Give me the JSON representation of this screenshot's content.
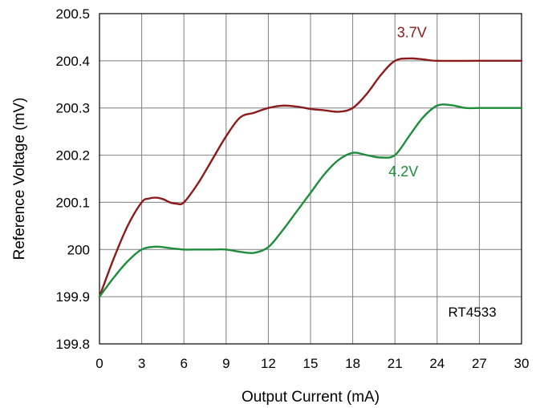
{
  "chart_data": {
    "type": "line",
    "xlabel": "Output Current (mA)",
    "ylabel": "Reference Voltage (mV)",
    "xlim": [
      0,
      30
    ],
    "ylim": [
      199.8,
      200.5
    ],
    "x_ticks": [
      "0",
      "3",
      "6",
      "9",
      "12",
      "15",
      "18",
      "21",
      "24",
      "27",
      "30"
    ],
    "y_ticks": [
      "200.5",
      "200.4",
      "200.3",
      "200.2",
      "200.1",
      "200",
      "199.9",
      "199.8"
    ],
    "grid": true,
    "annotation": "RT4533",
    "series": [
      {
        "name": "3.7V",
        "color": "#8b1a1a",
        "x": [
          0,
          1,
          2,
          3,
          3.5,
          4,
          4.5,
          5,
          5.5,
          6,
          7,
          8,
          9,
          10,
          11,
          12,
          13,
          14,
          15,
          16,
          17,
          18,
          19,
          20,
          21,
          22,
          23,
          24,
          27,
          30
        ],
        "y": [
          199.9,
          199.98,
          200.05,
          200.1,
          200.108,
          200.11,
          200.107,
          200.1,
          200.097,
          200.1,
          200.14,
          200.19,
          200.24,
          200.28,
          200.29,
          200.3,
          200.305,
          200.303,
          200.298,
          200.295,
          200.292,
          200.3,
          200.33,
          200.37,
          200.4,
          200.405,
          200.403,
          200.4,
          200.4,
          200.4
        ]
      },
      {
        "name": "4.2V",
        "color": "#1e8c3a",
        "x": [
          0,
          1,
          2,
          3,
          4,
          5,
          6,
          7,
          8,
          9,
          10,
          11,
          12,
          13,
          14,
          15,
          16,
          17,
          18,
          19,
          20,
          21,
          22,
          23,
          24,
          25,
          26,
          27,
          30
        ],
        "y": [
          199.9,
          199.94,
          199.975,
          200.0,
          200.006,
          200.003,
          200.0,
          200.0,
          200.0,
          200.0,
          199.995,
          199.993,
          200.005,
          200.04,
          200.08,
          200.12,
          200.16,
          200.19,
          200.205,
          200.2,
          200.195,
          200.2,
          200.24,
          200.28,
          200.305,
          200.306,
          200.3,
          200.3,
          200.3
        ]
      }
    ]
  }
}
